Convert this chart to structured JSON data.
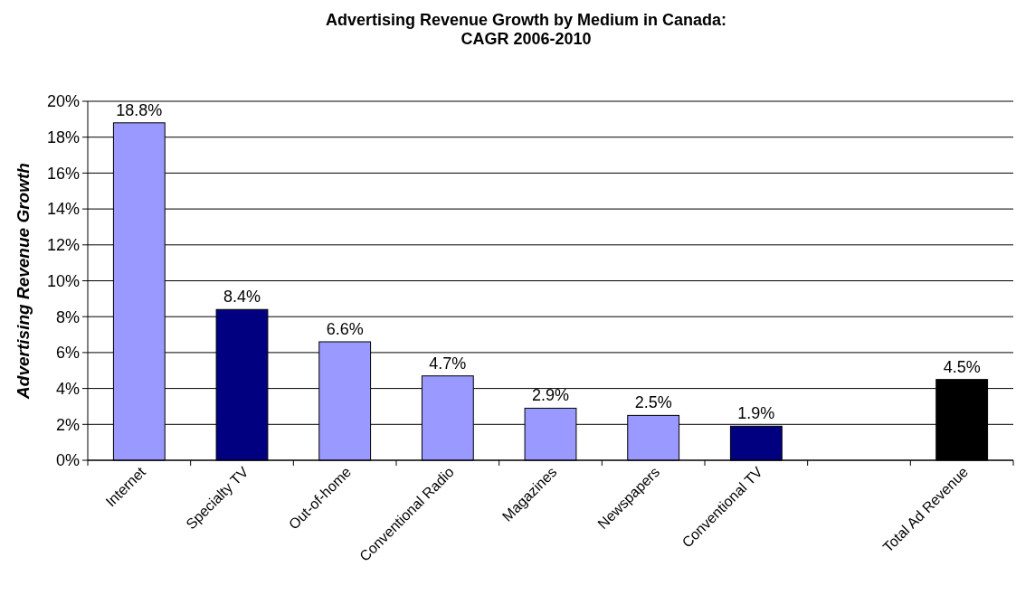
{
  "chart_data": {
    "type": "bar",
    "title": "Advertising Revenue Growth by Medium in Canada:\nCAGR 2006-2010",
    "ylabel": "Advertising Revenue Growth",
    "categories": [
      "Internet",
      "Specialty TV",
      "Out-of-home",
      "Conventional Radio",
      "Magazines",
      "Newspapers",
      "Conventional TV",
      null,
      "Total Ad Revenue"
    ],
    "values": [
      18.8,
      8.4,
      6.6,
      4.7,
      2.9,
      2.5,
      1.9,
      null,
      4.5
    ],
    "colors": [
      "#9999ff",
      "#000080",
      "#9999ff",
      "#9999ff",
      "#9999ff",
      "#9999ff",
      "#000080",
      null,
      "#000000"
    ],
    "value_labels": [
      "18.8%",
      "8.4%",
      "6.6%",
      "4.7%",
      "2.9%",
      "2.5%",
      "1.9%",
      null,
      "4.5%"
    ],
    "ylim": [
      0,
      20
    ],
    "yticks": [
      {
        "value": 0,
        "label": "0%"
      },
      {
        "value": 2,
        "label": "2%"
      },
      {
        "value": 4,
        "label": "4%"
      },
      {
        "value": 6,
        "label": "6%"
      },
      {
        "value": 8,
        "label": "8%"
      },
      {
        "value": 10,
        "label": "10%"
      },
      {
        "value": 12,
        "label": "12%"
      },
      {
        "value": 14,
        "label": "14%"
      },
      {
        "value": 16,
        "label": "16%"
      },
      {
        "value": 18,
        "label": "18%"
      },
      {
        "value": 20,
        "label": "20%"
      }
    ],
    "grid": "y"
  }
}
